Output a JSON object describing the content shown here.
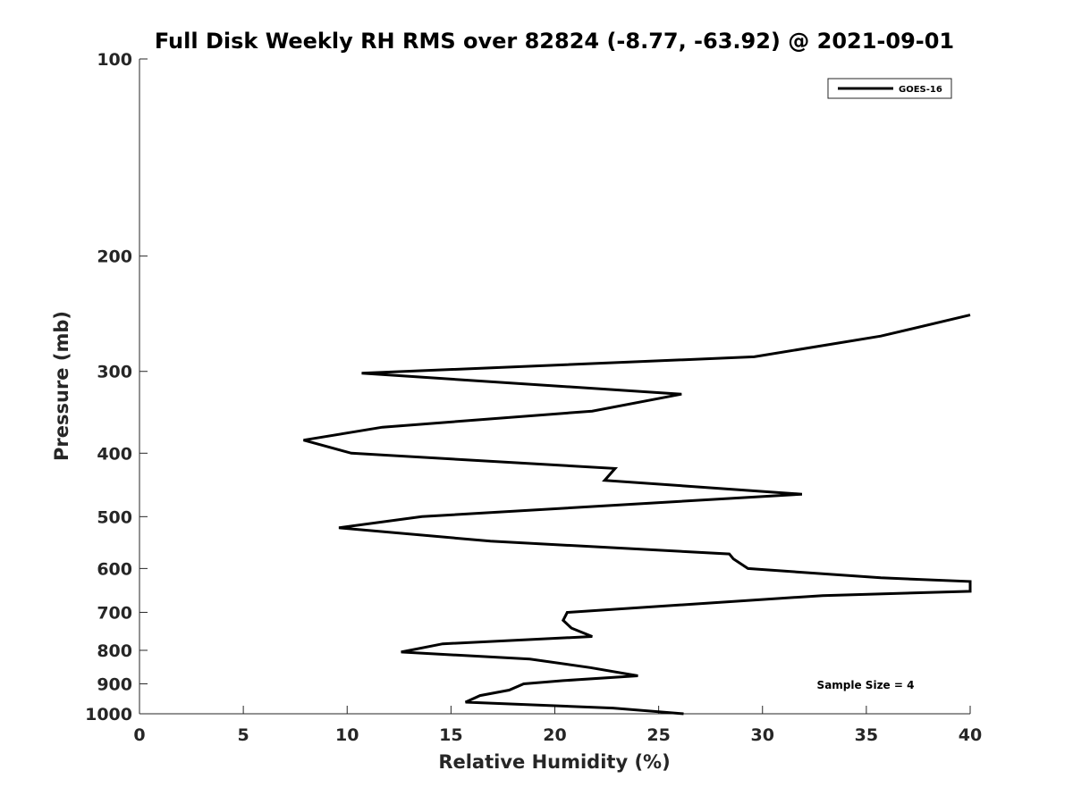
{
  "chart_data": {
    "type": "line",
    "title": "Full Disk Weekly RH RMS over 82824 (-8.77, -63.92) @ 2021-09-01",
    "xlabel": "Relative Humidity (%)",
    "ylabel": "Pressure (mb)",
    "xlim": [
      0,
      40
    ],
    "ylim": [
      100,
      1000
    ],
    "y_scale": "log",
    "y_reversed": true,
    "grid": false,
    "legend_position": "top-right",
    "x_ticks": [
      "0",
      "5",
      "10",
      "15",
      "20",
      "25",
      "30",
      "35",
      "40"
    ],
    "y_ticks": [
      "100",
      "200",
      "300",
      "400",
      "500",
      "600",
      "700",
      "800",
      "900",
      "1000"
    ],
    "series": [
      {
        "name": "GOES-16",
        "color": "#000000",
        "points": [
          {
            "x": 40.0,
            "y": 246
          },
          {
            "x": 35.7,
            "y": 265
          },
          {
            "x": 29.6,
            "y": 285
          },
          {
            "x": 10.7,
            "y": 302
          },
          {
            "x": 26.1,
            "y": 325
          },
          {
            "x": 21.8,
            "y": 345
          },
          {
            "x": 11.7,
            "y": 365
          },
          {
            "x": 7.9,
            "y": 382
          },
          {
            "x": 10.2,
            "y": 400
          },
          {
            "x": 22.9,
            "y": 422
          },
          {
            "x": 22.4,
            "y": 440
          },
          {
            "x": 31.9,
            "y": 462
          },
          {
            "x": 13.6,
            "y": 500
          },
          {
            "x": 9.6,
            "y": 520
          },
          {
            "x": 16.9,
            "y": 545
          },
          {
            "x": 28.4,
            "y": 570
          },
          {
            "x": 28.6,
            "y": 580
          },
          {
            "x": 29.3,
            "y": 600
          },
          {
            "x": 35.7,
            "y": 620
          },
          {
            "x": 40.0,
            "y": 628
          },
          {
            "x": 40.0,
            "y": 650
          },
          {
            "x": 32.9,
            "y": 660
          },
          {
            "x": 20.6,
            "y": 700
          },
          {
            "x": 20.4,
            "y": 720
          },
          {
            "x": 20.8,
            "y": 740
          },
          {
            "x": 21.8,
            "y": 762
          },
          {
            "x": 14.6,
            "y": 782
          },
          {
            "x": 12.6,
            "y": 805
          },
          {
            "x": 18.8,
            "y": 825
          },
          {
            "x": 21.7,
            "y": 850
          },
          {
            "x": 24.0,
            "y": 875
          },
          {
            "x": 20.4,
            "y": 890
          },
          {
            "x": 18.5,
            "y": 900
          },
          {
            "x": 17.8,
            "y": 920
          },
          {
            "x": 16.4,
            "y": 938
          },
          {
            "x": 15.7,
            "y": 960
          },
          {
            "x": 22.8,
            "y": 980
          },
          {
            "x": 26.2,
            "y": 1000
          }
        ]
      }
    ],
    "annotations": [
      "Sample Size = 4"
    ]
  }
}
